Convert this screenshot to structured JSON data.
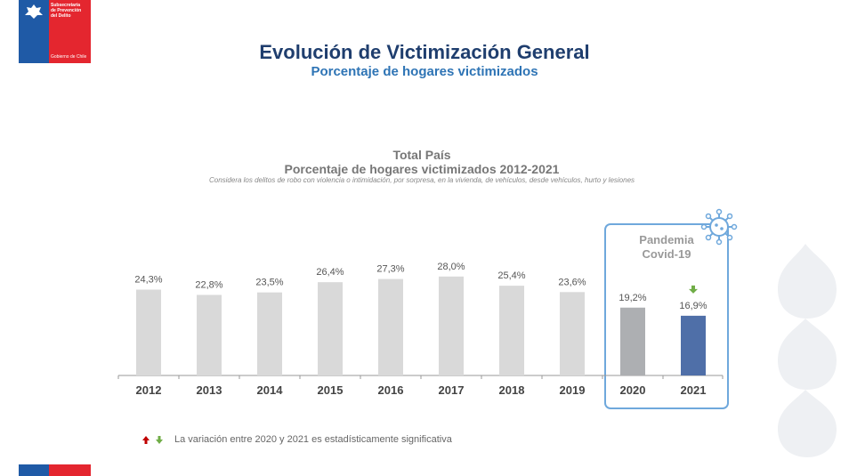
{
  "logo": {
    "line1": "Subsecretaría",
    "line2": "de Prevención",
    "line3": "del Delito",
    "gobierno": "Gobierno de Chile"
  },
  "header": {
    "title": "Evolución de Victimización General",
    "subtitle": "Porcentaje de hogares victimizados"
  },
  "chart_data": {
    "type": "bar",
    "title": "Total País",
    "subtitle": "Porcentaje de hogares victimizados 2012-2021",
    "note": "Considera los delitos de robo con violencia o intimidación, por sorpresa, en la vivienda, de vehículos, desde vehículos, hurto y lesiones",
    "categories": [
      "2012",
      "2013",
      "2014",
      "2015",
      "2016",
      "2017",
      "2018",
      "2019",
      "2020",
      "2021"
    ],
    "values": [
      24.3,
      22.8,
      23.5,
      26.4,
      27.3,
      28.0,
      25.4,
      23.6,
      19.2,
      16.9
    ],
    "value_labels": [
      "24,3%",
      "22,8%",
      "23,5%",
      "26,4%",
      "27,3%",
      "28,0%",
      "25,4%",
      "23,6%",
      "19,2%",
      "16,9%"
    ],
    "bar_colors": [
      "#d9d9d9",
      "#d9d9d9",
      "#d9d9d9",
      "#d9d9d9",
      "#d9d9d9",
      "#d9d9d9",
      "#d9d9d9",
      "#d9d9d9",
      "#adafb2",
      "#4f6fa8"
    ],
    "highlight_box_label_1": "Pandemia",
    "highlight_box_label_2": "Covid-19",
    "highlight_color": "#6fa8dc",
    "down_arrow_on": "2021",
    "grid": false
  },
  "legend": {
    "text": "La variación entre 2020 y 2021 es estadísticamente significativa",
    "up_color": "#c00000",
    "down_color": "#70ad47"
  }
}
